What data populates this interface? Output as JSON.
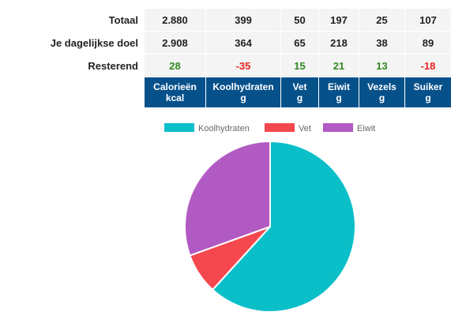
{
  "table": {
    "columns": [
      {
        "name": "Calorieën",
        "unit": "kcal"
      },
      {
        "name": "Koolhydraten",
        "unit": "g"
      },
      {
        "name": "Vet",
        "unit": "g"
      },
      {
        "name": "Eiwit",
        "unit": "g"
      },
      {
        "name": "Vezels",
        "unit": "g"
      },
      {
        "name": "Suiker",
        "unit": "g"
      }
    ],
    "rows": [
      {
        "label": "Totaal",
        "values": [
          "2.880",
          "399",
          "50",
          "197",
          "25",
          "107"
        ]
      },
      {
        "label": "Je dagelijkse doel",
        "values": [
          "2.908",
          "364",
          "65",
          "218",
          "38",
          "89"
        ]
      },
      {
        "label": "Resterend",
        "values": [
          "28",
          "-35",
          "15",
          "21",
          "13",
          "-18"
        ]
      }
    ],
    "colors": {
      "header_bg": "#07518b",
      "positive": "#2e8a1f",
      "negative": "#e8221f",
      "cell_bg": "#f4f4f4"
    }
  },
  "chart_data": {
    "type": "pie",
    "categories": [
      "Koolhydraten",
      "Vet",
      "Eiwit"
    ],
    "values": [
      399,
      50,
      197
    ],
    "colors": [
      "#0bbfc9",
      "#f5484e",
      "#b25ac3"
    ],
    "legend": "top",
    "start_angle": "top, clockwise"
  }
}
